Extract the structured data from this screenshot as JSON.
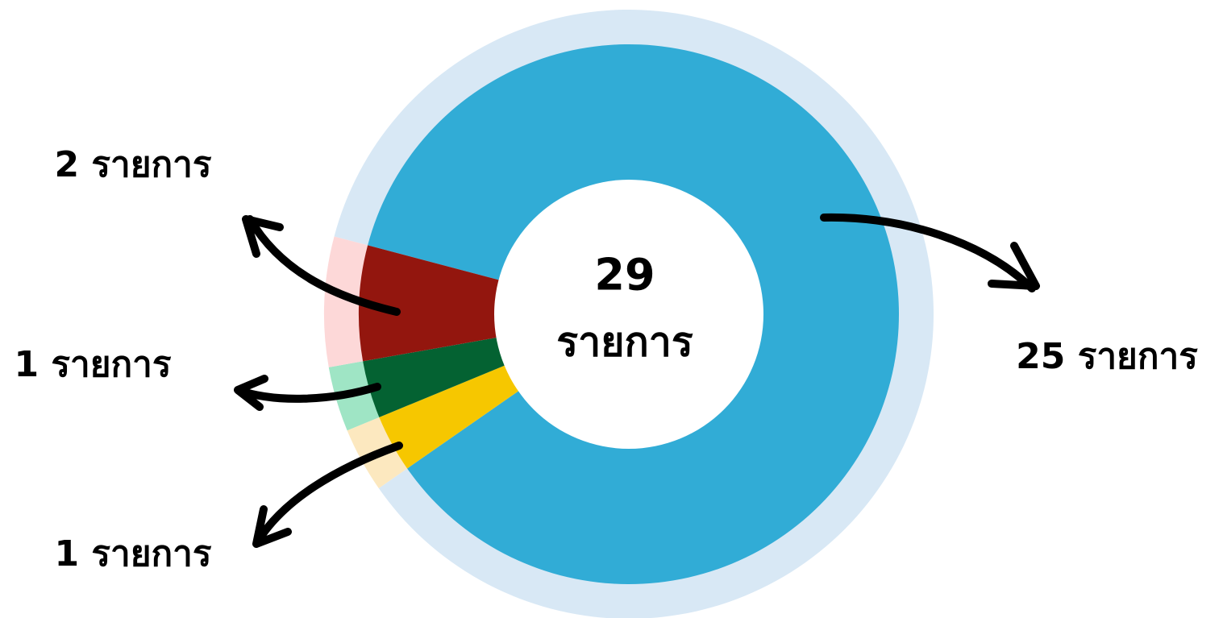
{
  "chart_data": {
    "type": "donut",
    "values": [
      25,
      1,
      1,
      2
    ],
    "value_labels": [
      "25 รายการ",
      "1 รายการ",
      "1 รายการ",
      "2 รายการ"
    ],
    "colors": [
      "#31acd6",
      "#f6c700",
      "#046232",
      "#93160e"
    ],
    "ring_colors": [
      "#d8e8f5",
      "#fce8bf",
      "#9fe5c5",
      "#fdd8d8"
    ],
    "center_value": 29,
    "center_label": "รายการ"
  }
}
